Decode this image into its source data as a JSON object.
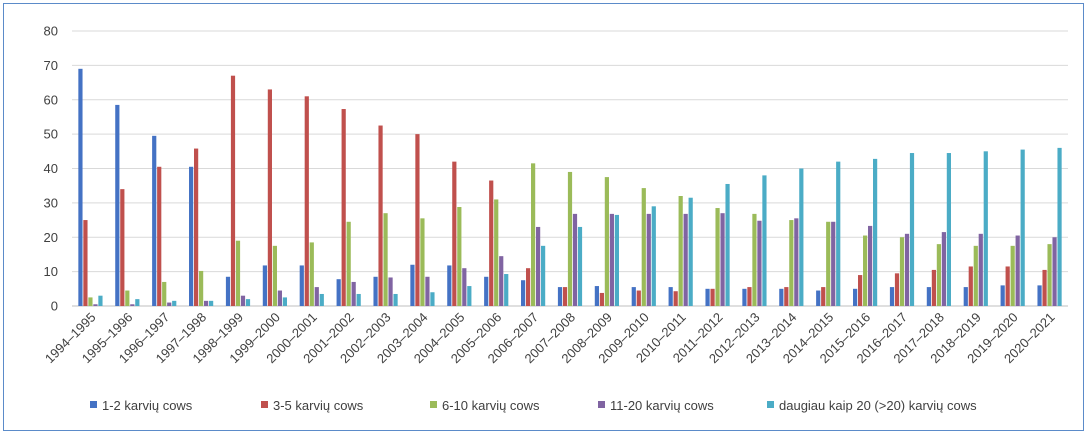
{
  "chart_data": {
    "type": "bar",
    "title": "",
    "xlabel": "",
    "ylabel": "",
    "ylim": [
      0,
      80
    ],
    "yticks": [
      0,
      10,
      20,
      30,
      40,
      50,
      60,
      70,
      80
    ],
    "grid": true,
    "legend_position": "bottom",
    "categories": [
      "1994–1995",
      "1995–1996",
      "1996–1997",
      "1997–1998",
      "1998–1999",
      "1999–2000",
      "2000–2001",
      "2001–2002",
      "2002–2003",
      "2003–2004",
      "2004–2005",
      "2005–2006",
      "2006–2007",
      "2007–2008",
      "2008–2009",
      "2009–2010",
      "2010–2011",
      "2011–2012",
      "2012–2013",
      "2013–2014",
      "2014–2015",
      "2015–2016",
      "2016–2017",
      "2017–2018",
      "2018–2019",
      "2019–2020",
      "2020–2021"
    ],
    "series": [
      {
        "name": "1-2 karvių cows",
        "color": "#4472c4",
        "values": [
          69,
          58.5,
          49.5,
          40.5,
          8.5,
          11.8,
          11.8,
          7.8,
          8.5,
          12,
          11.8,
          8.5,
          7.5,
          5.5,
          5.8,
          5.5,
          5.5,
          5,
          5,
          5,
          4.5,
          5,
          5.5,
          5.5,
          5.5,
          6,
          6
        ]
      },
      {
        "name": "3-5 karvių cows",
        "color": "#c0504d",
        "values": [
          25,
          34,
          40.5,
          45.8,
          67,
          63,
          61,
          57.3,
          52.5,
          50,
          42,
          36.5,
          11,
          5.5,
          3.8,
          4.5,
          4.3,
          5,
          5.5,
          5.5,
          5.5,
          9,
          9.5,
          10.5,
          11.5,
          11.5,
          10.5
        ]
      },
      {
        "name": "6-10 karvių cows",
        "color": "#9bbb59",
        "values": [
          2.5,
          4.5,
          7,
          10.2,
          19,
          17.5,
          18.5,
          24.5,
          27,
          25.5,
          28.8,
          31,
          41.5,
          39,
          37.5,
          34.3,
          32,
          28.5,
          26.8,
          25,
          24.5,
          20.5,
          20,
          18,
          17.5,
          17.5,
          18
        ]
      },
      {
        "name": "11-20 karvių cows",
        "color": "#8064a2",
        "values": [
          0.5,
          0.5,
          1,
          1.5,
          3,
          4.5,
          5.5,
          7,
          8.3,
          8.5,
          11,
          14.5,
          23,
          26.8,
          26.8,
          26.8,
          26.8,
          27,
          24.8,
          25.5,
          24.5,
          23.3,
          21,
          21.5,
          21,
          20.5,
          20
        ]
      },
      {
        "name": "daugiau kaip 20 (>20) karvių cows",
        "color": "#4bacc6",
        "values": [
          3,
          2,
          1.5,
          1.5,
          2,
          2.5,
          3.5,
          3.5,
          3.5,
          4,
          5.8,
          9.3,
          17.5,
          23,
          26.5,
          29,
          31.5,
          35.5,
          38,
          40,
          42,
          42.8,
          44.5,
          44.5,
          45,
          45.5,
          46
        ]
      }
    ]
  }
}
